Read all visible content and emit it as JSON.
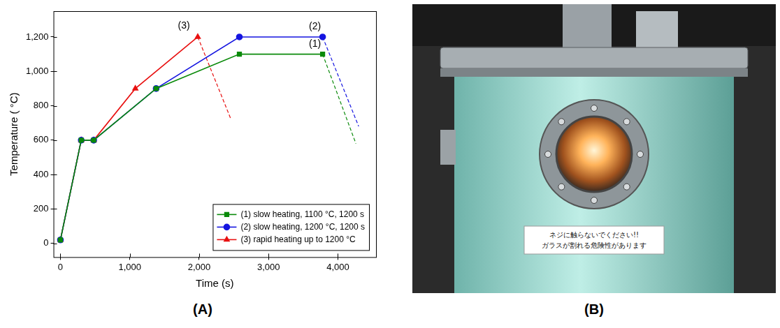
{
  "chart_data": {
    "type": "line",
    "panel_label": "(A)",
    "x_label": "Time (s)",
    "y_label": "Temperature ( °C)",
    "xlim": [
      -100,
      4550
    ],
    "xticks": [
      0,
      {
        "value": 1000,
        "label": "1,000"
      },
      {
        "value": 2000,
        "label": "2,000"
      },
      {
        "value": 3000,
        "label": "3,000"
      },
      {
        "value": 4000,
        "label": "4,000"
      }
    ],
    "ylim": [
      -80,
      1350
    ],
    "yticks": [
      0,
      200,
      400,
      600,
      800,
      {
        "value": 1000,
        "label": "1,000"
      },
      {
        "value": 1200,
        "label": "1,200"
      }
    ],
    "grid": false,
    "legend": "bottom-right",
    "series": [
      {
        "name": "(1) slow heating, 1100 °C, 1200 s",
        "color": "#0a8a0a",
        "marker": "square",
        "line_style": "solid",
        "x": [
          0,
          300,
          480,
          1380,
          2580,
          3780
        ],
        "values": [
          20,
          600,
          600,
          900,
          1100,
          1100
        ],
        "cooling": {
          "line_style": "dashed",
          "x": [
            3780,
            4260
          ],
          "values": [
            1100,
            580
          ]
        }
      },
      {
        "name": "(2) slow heating, 1200 °C, 1200 s",
        "color": "#1515e0",
        "marker": "circle",
        "line_style": "solid",
        "x": [
          0,
          300,
          480,
          1380,
          2580,
          3780
        ],
        "values": [
          20,
          600,
          600,
          900,
          1200,
          1200
        ],
        "cooling": {
          "line_style": "dashed",
          "x": [
            3780,
            4300
          ],
          "values": [
            1200,
            680
          ]
        }
      },
      {
        "name": "(3) rapid heating up to 1200 °C",
        "color": "#e81010",
        "marker": "triangle",
        "line_style": "solid",
        "x": [
          0,
          300,
          480,
          1080,
          1980
        ],
        "values": [
          20,
          600,
          600,
          900,
          1200
        ],
        "cooling": {
          "line_style": "dashed",
          "x": [
            1980,
            2460
          ],
          "values": [
            1200,
            720
          ]
        }
      }
    ],
    "annotations": [
      {
        "text": "(3)",
        "x": 1780,
        "y": 1265
      },
      {
        "text": "(2)",
        "x": 3670,
        "y": 1262
      },
      {
        "text": "(1)",
        "x": 3670,
        "y": 1158
      }
    ]
  },
  "photo": {
    "panel_label": "(B)",
    "sticker_text": [
      "ネジに触らないでください!!",
      "ガラスが割れる危険性があります"
    ]
  }
}
